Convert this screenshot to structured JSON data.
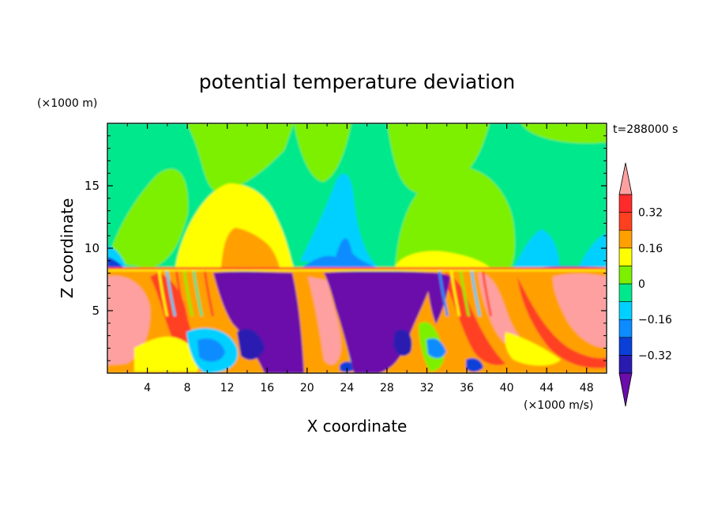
{
  "chart_data": {
    "type": "heatmap",
    "title": "potential temperature deviation",
    "xlabel": "X coordinate",
    "ylabel": "Z coordinate",
    "x_unit": "(×1000 m/s)",
    "y_unit": "(×1000 m)",
    "time_label": "t=288000 s",
    "xlim": [
      0,
      50
    ],
    "ylim": [
      0,
      20
    ],
    "x_ticks": [
      4,
      8,
      12,
      16,
      20,
      24,
      28,
      32,
      36,
      40,
      44,
      48
    ],
    "y_ticks": [
      5,
      10,
      15
    ],
    "colorbar": {
      "levels": [
        -0.4,
        -0.32,
        -0.24,
        -0.16,
        -0.08,
        0,
        0.08,
        0.16,
        0.24,
        0.32,
        0.4
      ],
      "labeled_ticks": [
        0.32,
        0.16,
        0,
        -0.16,
        -0.32
      ],
      "colors": [
        "#6a0daa",
        "#2a1bb0",
        "#0a3fd8",
        "#0c8cff",
        "#00d0ff",
        "#00e88c",
        "#7df000",
        "#ffff00",
        "#ffa000",
        "#ff4020",
        "#ff2a2a",
        "#ffa0a0"
      ],
      "extend": "both"
    }
  }
}
